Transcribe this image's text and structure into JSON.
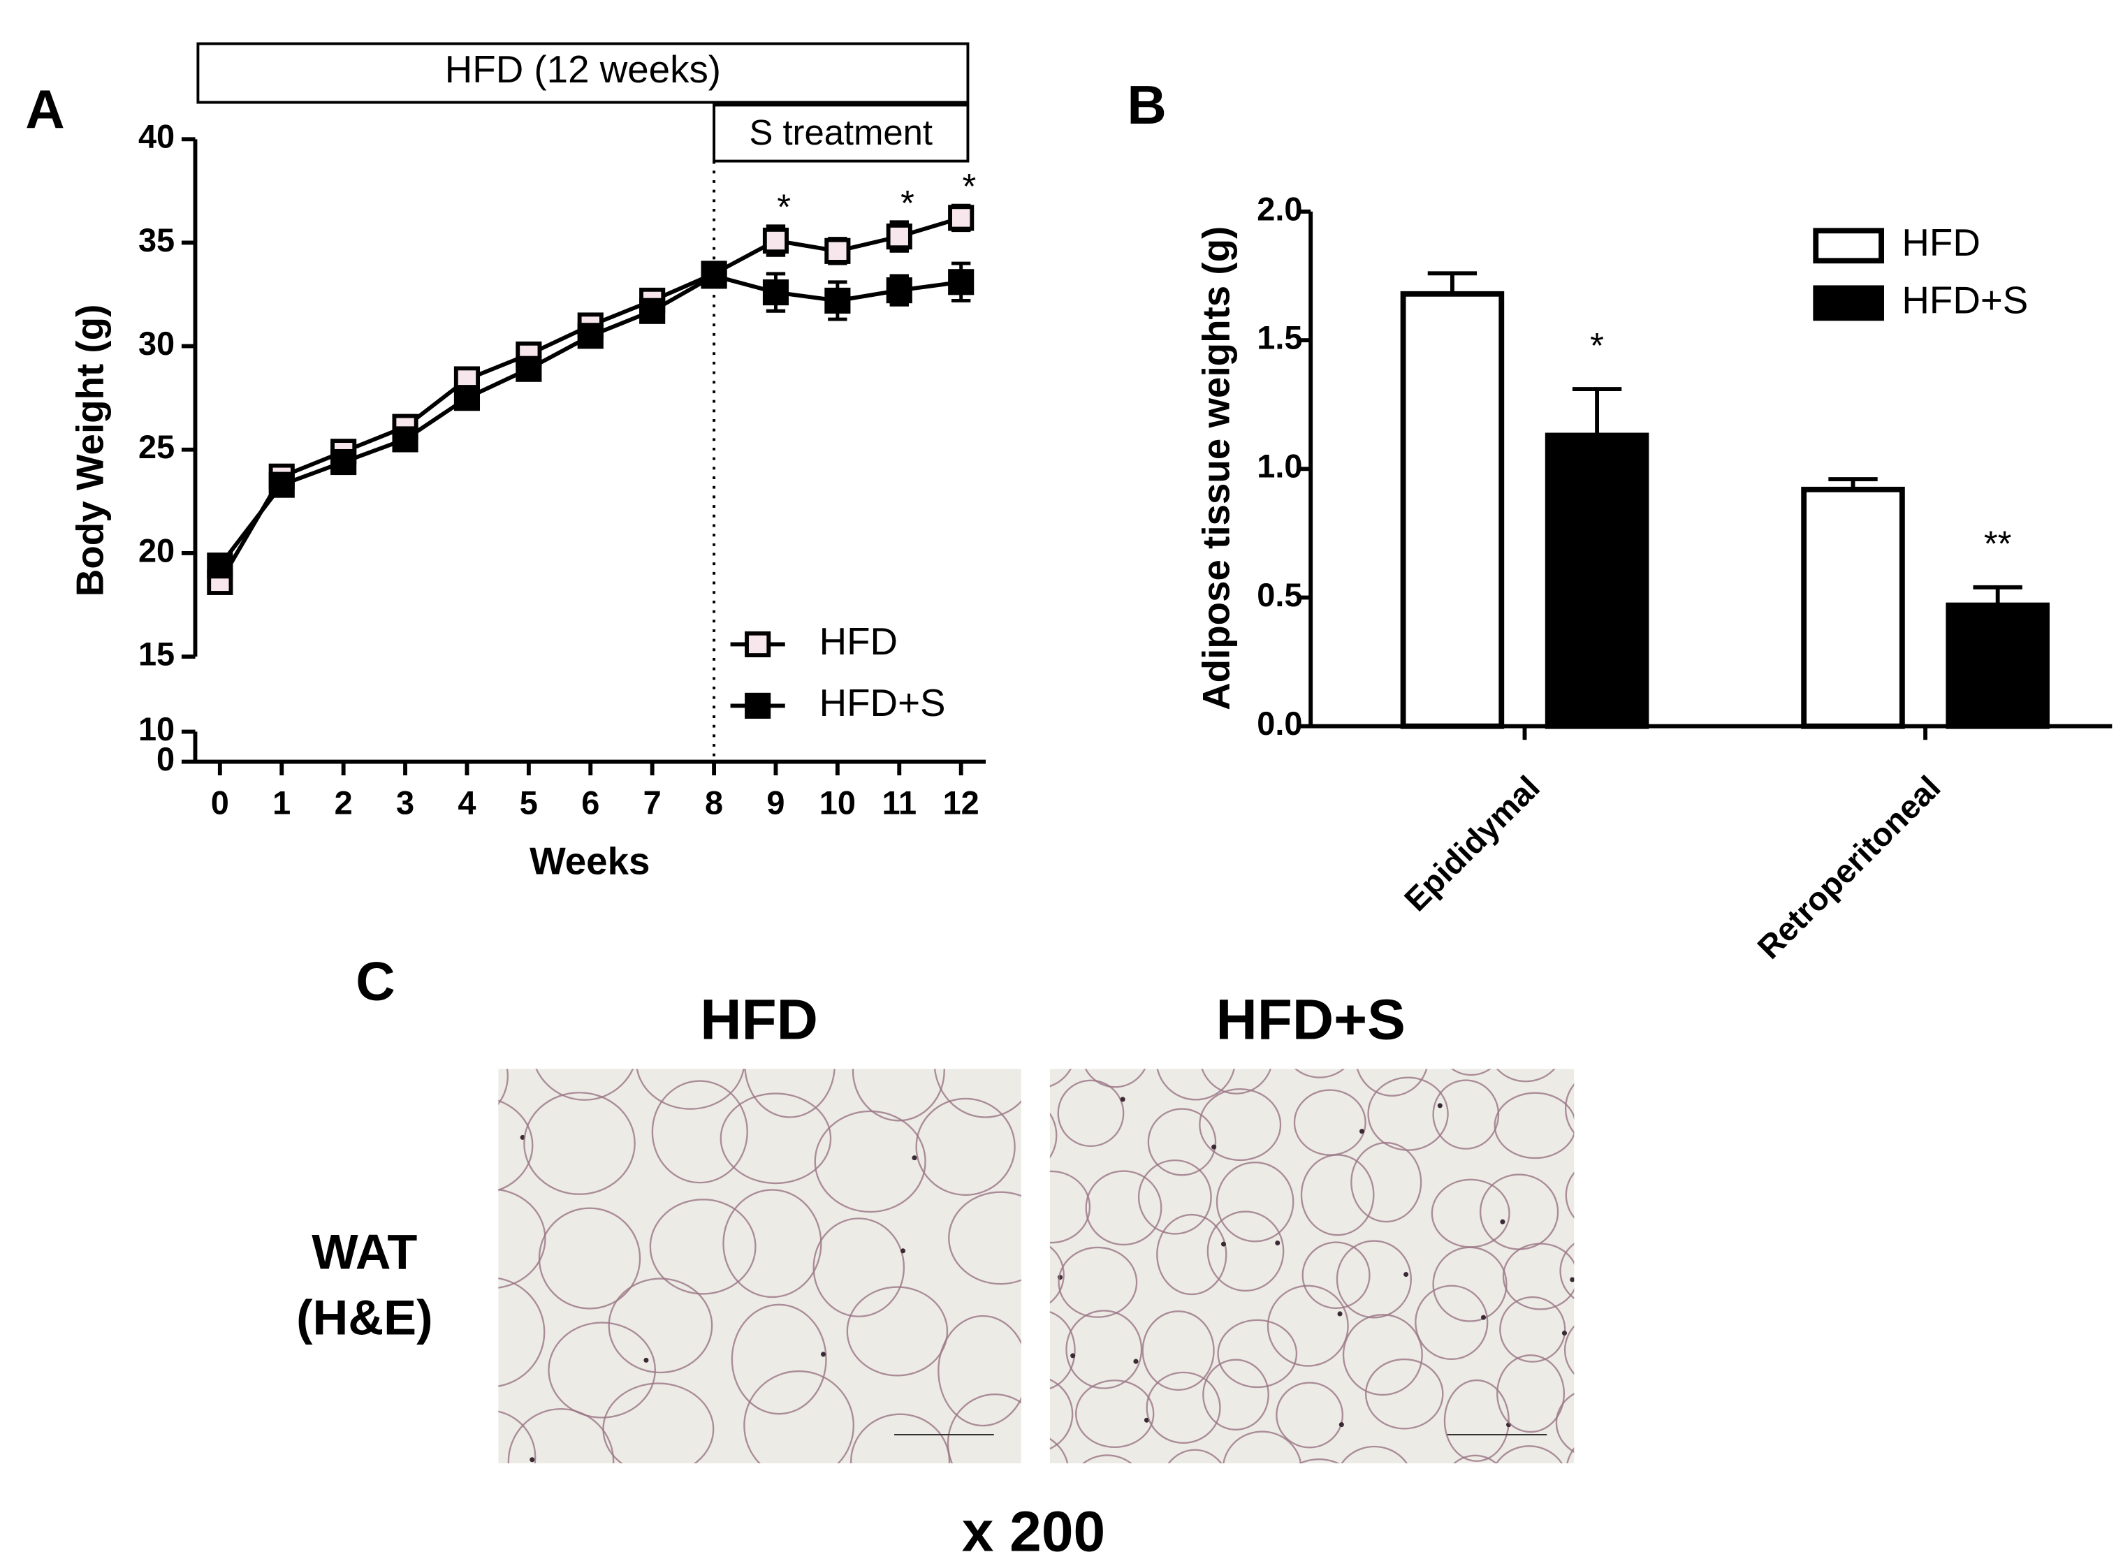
{
  "chart_data": [
    {
      "type": "line",
      "panel": "A",
      "header": "HFD (12 weeks)",
      "treatment_label": "S treatment",
      "treatment_start": 8,
      "xlabel": "Weeks",
      "ylabel": "Body Weight (g)",
      "x": [
        0,
        1,
        2,
        3,
        4,
        5,
        6,
        7,
        8,
        9,
        10,
        11,
        12
      ],
      "xlim": [
        -0.4,
        12.4
      ],
      "xticks": [
        0,
        1,
        2,
        3,
        4,
        5,
        6,
        7,
        8,
        9,
        10,
        11,
        12
      ],
      "ylim": [
        0,
        40
      ],
      "ybreak": [
        10,
        15
      ],
      "yticks": [
        0,
        10,
        15,
        20,
        25,
        30,
        35,
        40
      ],
      "legend": "lower right",
      "series": [
        {
          "name": "HFD",
          "color": "#f7e6ec",
          "stroke": "#000000",
          "values": [
            18.6,
            23.7,
            24.9,
            26.1,
            28.4,
            29.6,
            31.0,
            32.2,
            33.5,
            35.1,
            34.6,
            35.3,
            36.2
          ],
          "errors": [
            0.4,
            0.3,
            0.3,
            0.3,
            0.4,
            0.4,
            0.4,
            0.4,
            0.5,
            0.7,
            0.6,
            0.7,
            0.6
          ],
          "significance": [
            null,
            null,
            null,
            null,
            null,
            null,
            null,
            null,
            null,
            "*",
            null,
            "*",
            "*"
          ]
        },
        {
          "name": "HFD+S",
          "color": "#000000",
          "stroke": "#000000",
          "values": [
            19.4,
            23.3,
            24.4,
            25.5,
            27.5,
            28.9,
            30.5,
            31.7,
            33.4,
            32.6,
            32.2,
            32.7,
            33.1
          ],
          "errors": [
            0.4,
            0.3,
            0.3,
            0.3,
            0.4,
            0.4,
            0.4,
            0.4,
            0.5,
            0.9,
            0.9,
            0.7,
            0.9
          ]
        }
      ]
    },
    {
      "type": "bar",
      "panel": "B",
      "ylabel": "Adipose tissue weights (g)",
      "categories": [
        "Epididymal",
        "Retroperitoneal"
      ],
      "ylim": [
        0,
        2.0
      ],
      "yticks": [
        {
          "value": 0,
          "label": "0.0"
        },
        {
          "value": 0.5,
          "label": "0.5"
        },
        {
          "value": 1.0,
          "label": "1.0"
        },
        {
          "value": 1.5,
          "label": "1.5"
        },
        {
          "value": 2.0,
          "label": "2.0"
        }
      ],
      "legend": "upper right",
      "series": [
        {
          "name": "HFD",
          "color": "#ffffff",
          "stroke": "#000000",
          "values": [
            1.68,
            0.92
          ],
          "errors": [
            0.08,
            0.04
          ]
        },
        {
          "name": "HFD+S",
          "color": "#000000",
          "stroke": "#000000",
          "values": [
            1.13,
            0.47
          ],
          "errors": [
            0.18,
            0.07
          ],
          "significance": [
            "*",
            "**"
          ]
        }
      ]
    }
  ],
  "panel_c": {
    "label": "C",
    "columns": [
      "HFD",
      "HFD+S"
    ],
    "row_label": [
      "WAT",
      "(H&E)"
    ],
    "magnification": "x 200"
  }
}
